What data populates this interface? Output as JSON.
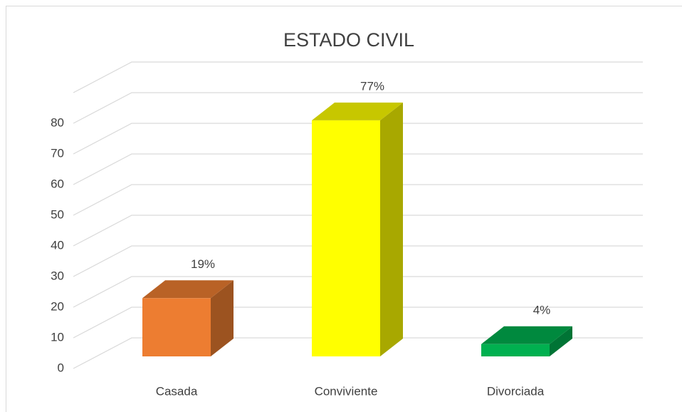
{
  "chart_data": {
    "type": "bar3d",
    "title": "ESTADO CIVIL",
    "categories": [
      "Casada",
      "Conviviente",
      "Divorciada"
    ],
    "values": [
      19,
      77,
      4
    ],
    "value_labels": [
      "19%",
      "77%",
      "4%"
    ],
    "colors": [
      "#ED7D31",
      "#FFFF00",
      "#00B050"
    ],
    "ylim": [
      0,
      90
    ],
    "yticks": [
      0,
      10,
      20,
      30,
      40,
      50,
      60,
      70,
      80
    ],
    "grid": true
  }
}
